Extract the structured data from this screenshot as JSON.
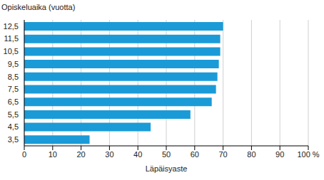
{
  "chart_data": {
    "type": "bar",
    "orientation": "horizontal",
    "ylabel": "Opiskeluaika (vuotta)",
    "xlabel": "Läpäisyaste",
    "categories": [
      "12,5",
      "11,5",
      "10,5",
      "9,5",
      "8,5",
      "7,5",
      "6,5",
      "5,5",
      "4,5",
      "3,5"
    ],
    "values": [
      70,
      69,
      69,
      68.5,
      68,
      67.5,
      66,
      58.5,
      44.5,
      23
    ],
    "color": "#1a9bd7",
    "xlim": [
      0,
      100
    ],
    "xticks": [
      0,
      10,
      20,
      30,
      40,
      50,
      60,
      70,
      80,
      90,
      {
        "value": 100,
        "label": "100 %"
      }
    ],
    "grid": true
  }
}
